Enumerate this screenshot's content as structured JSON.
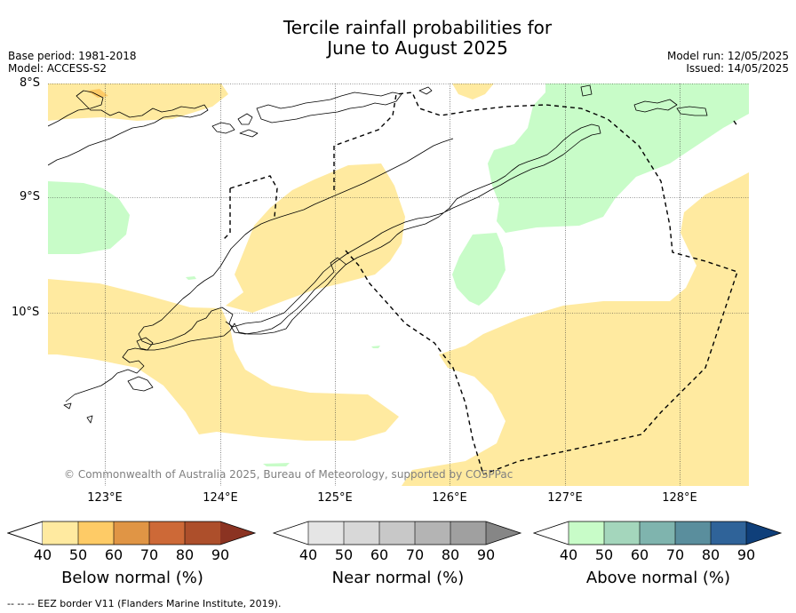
{
  "header": {
    "title_line1": "Tercile rainfall probabilities for",
    "title_line2": "June to August 2025",
    "base_period": "Base period: 1981-2018",
    "model": "Model: ACCESS-S2",
    "model_run": "Model run: 12/05/2025",
    "issued": "Issued: 14/05/2025"
  },
  "map": {
    "lat_labels": [
      "8°S",
      "9°S",
      "10°S"
    ],
    "lon_labels": [
      "123°E",
      "124°E",
      "125°E",
      "126°E",
      "127°E",
      "128°E"
    ],
    "copyright": "© Commonwealth of Australia 2025, Bureau of Meteorology, supported by COSPPac",
    "colors": {
      "below_normal_50": "#ffeaa0",
      "above_normal_50": "#c8fcc8",
      "land_outline": "#000000",
      "eez_border": "#000000"
    }
  },
  "colorbars": [
    {
      "label": "Below normal (%)",
      "ticks": [
        "40",
        "50",
        "60",
        "70",
        "80",
        "90"
      ],
      "colors": [
        "#ffffff",
        "#ffeaa0",
        "#fecb66",
        "#e09545",
        "#cd6937",
        "#ad4f2b",
        "#8b3322"
      ]
    },
    {
      "label": "Near normal (%)",
      "ticks": [
        "40",
        "50",
        "60",
        "70",
        "80",
        "90"
      ],
      "colors": [
        "#ffffff",
        "#e5e5e5",
        "#d8d8d8",
        "#c8c8c8",
        "#b4b4b4",
        "#a0a0a0",
        "#868686"
      ]
    },
    {
      "label": "Above normal (%)",
      "ticks": [
        "40",
        "50",
        "60",
        "70",
        "80",
        "90"
      ],
      "colors": [
        "#ffffff",
        "#c8fcc8",
        "#a4d6bc",
        "#7fb4ae",
        "#5a8e9d",
        "#2f6399",
        "#0f3f7a"
      ]
    }
  ],
  "footer": {
    "eez_note": "--  --  -- EEZ border V11 (Flanders Marine Institute, 2019)."
  }
}
